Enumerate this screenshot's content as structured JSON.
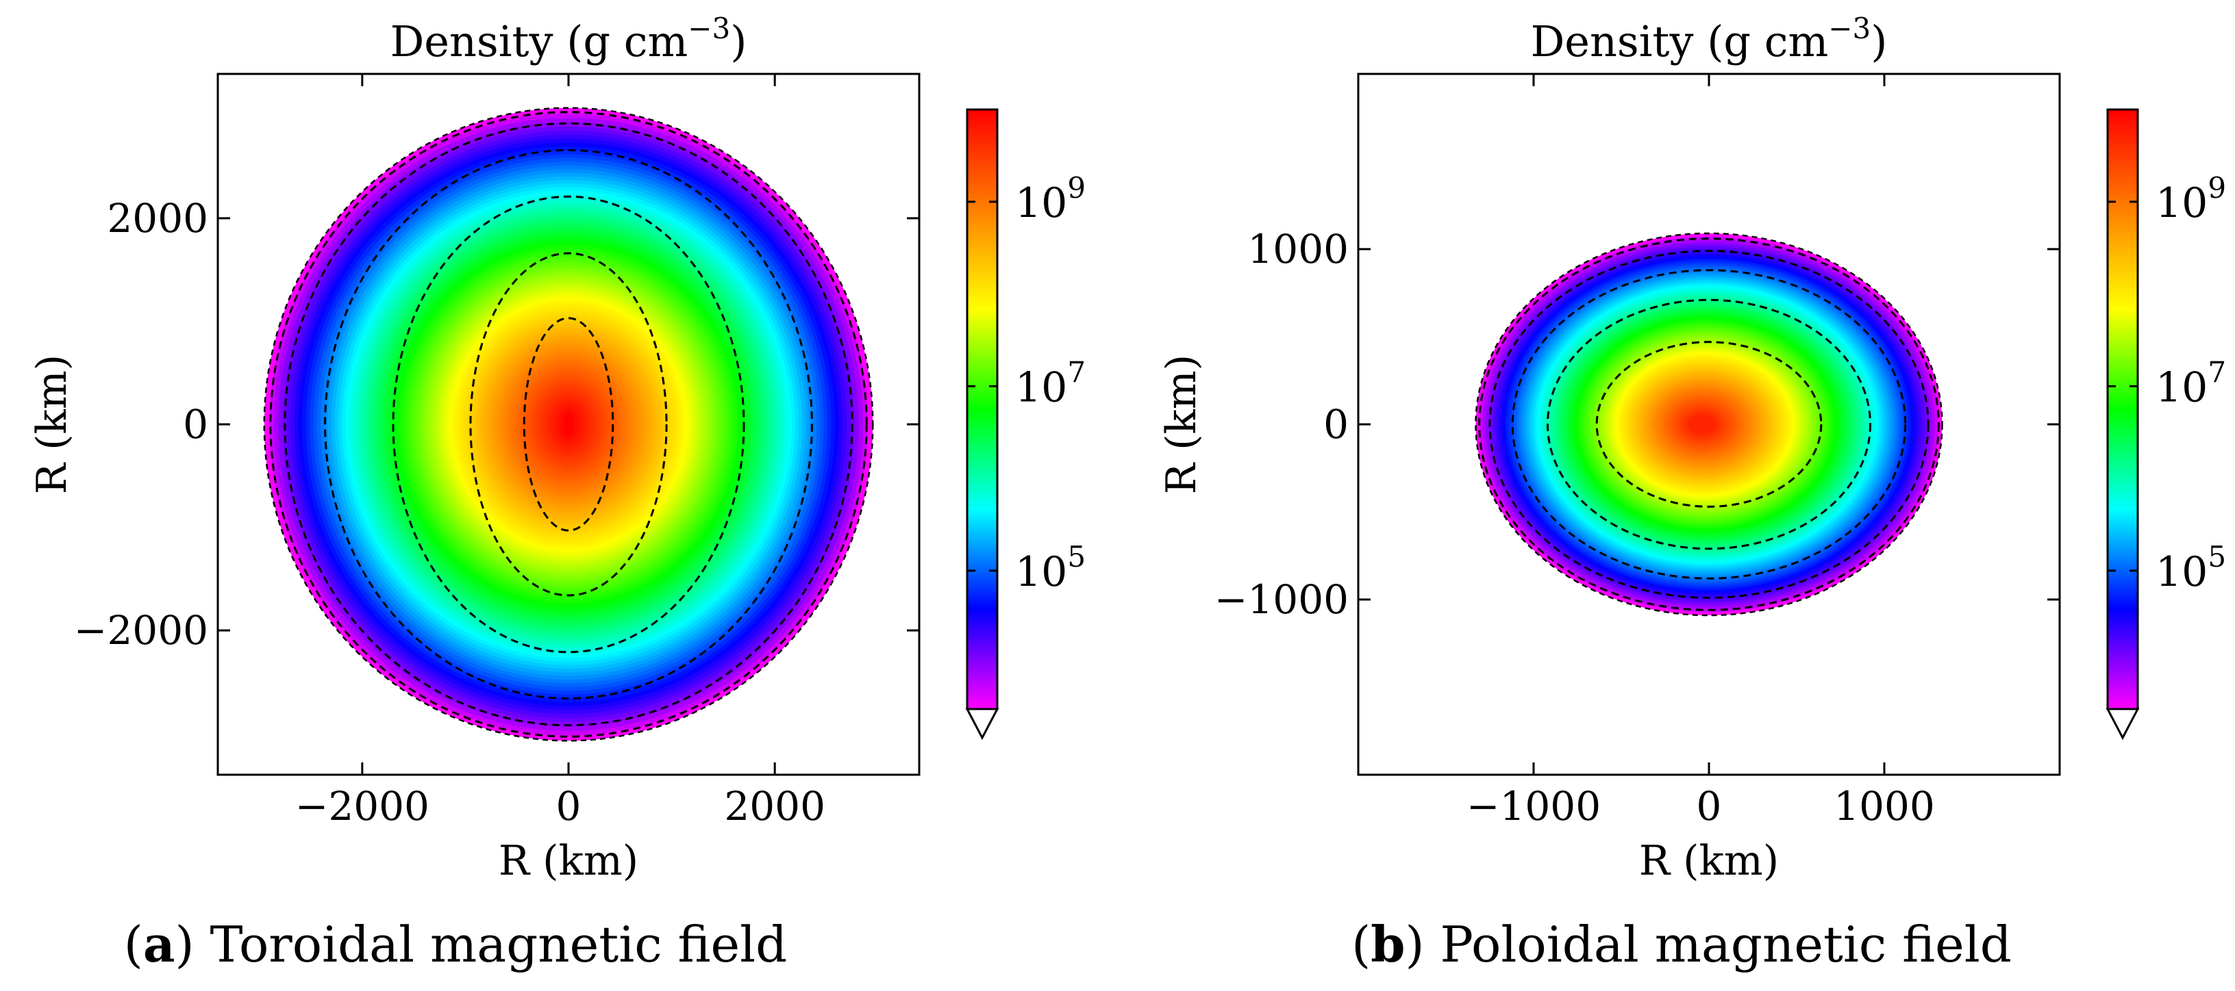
{
  "figure": {
    "colormap": [
      "#ff00ff",
      "#0000ff",
      "#00ffff",
      "#00ff00",
      "#ffff00",
      "#ff7f00",
      "#ff0000"
    ]
  },
  "chart_data": [
    {
      "type": "heatmap",
      "title": "Density (g cm",
      "title_exponent": "−3",
      "title_suffix": ")",
      "xlabel": "R (km)",
      "ylabel": "R (km)",
      "xlim": [
        -3400,
        3400
      ],
      "ylim": [
        -3400,
        3400
      ],
      "xticks": [
        -2000,
        0,
        2000
      ],
      "xtick_labels": [
        "−2000",
        "0",
        "2000"
      ],
      "yticks": [
        2000,
        0,
        -2000
      ],
      "ytick_labels": [
        "2000",
        "0",
        "−2000"
      ],
      "star": {
        "rx": 2950,
        "ry": 3070,
        "core_x": 0,
        "core_y": 0,
        "core_rx": 260,
        "core_ry": 650,
        "central_log_density": 10.0
      },
      "contours": [
        {
          "rx": 430,
          "ry": 1030
        },
        {
          "rx": 950,
          "ry": 1660
        },
        {
          "rx": 1700,
          "ry": 2210
        },
        {
          "rx": 2360,
          "ry": 2660
        },
        {
          "rx": 2750,
          "ry": 2920
        },
        {
          "rx": 2890,
          "ry": 3030
        }
      ],
      "colorbar": {
        "log_min": 3.5,
        "log_max": 10.0,
        "ticks": [
          {
            "base": "10",
            "exp": "9",
            "log": 9
          },
          {
            "base": "10",
            "exp": "7",
            "log": 7
          },
          {
            "base": "10",
            "exp": "5",
            "log": 5
          }
        ],
        "extend": "min"
      },
      "caption_letter": "a",
      "caption_text": " Toroidal magnetic field"
    },
    {
      "type": "heatmap",
      "title": "Density (g cm",
      "title_exponent": "−3",
      "title_suffix": ")",
      "xlabel": "R (km)",
      "ylabel": "R (km)",
      "xlim": [
        -2000,
        2000
      ],
      "ylim": [
        -2000,
        2000
      ],
      "xticks": [
        -1000,
        0,
        1000
      ],
      "xtick_labels": [
        "−1000",
        "0",
        "1000"
      ],
      "yticks": [
        1000,
        0,
        -1000
      ],
      "ytick_labels": [
        "1000",
        "0",
        "−1000"
      ],
      "star": {
        "rx": 1330,
        "ry": 1090,
        "core_x": -40,
        "core_y": 0,
        "core_rx": 480,
        "core_ry": 340,
        "central_log_density": 9.7
      },
      "contours": [
        {
          "rx": 640,
          "ry": 470
        },
        {
          "rx": 920,
          "ry": 710
        },
        {
          "rx": 1120,
          "ry": 880
        },
        {
          "rx": 1250,
          "ry": 990
        },
        {
          "rx": 1310,
          "ry": 1060
        }
      ],
      "colorbar": {
        "log_min": 3.5,
        "log_max": 10.0,
        "ticks": [
          {
            "base": "10",
            "exp": "9",
            "log": 9
          },
          {
            "base": "10",
            "exp": "7",
            "log": 7
          },
          {
            "base": "10",
            "exp": "5",
            "log": 5
          }
        ],
        "extend": "min"
      },
      "caption_letter": "b",
      "caption_text": " Poloidal magnetic field"
    }
  ]
}
